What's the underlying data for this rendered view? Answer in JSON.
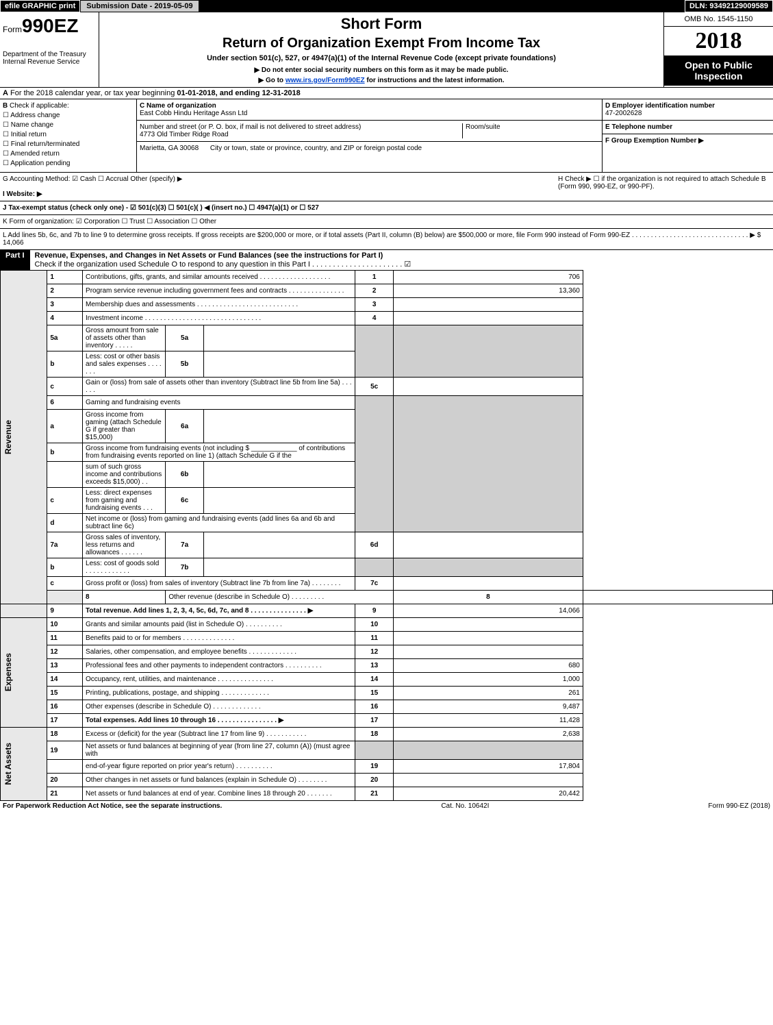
{
  "topbar": {
    "efile": "efile GRAPHIC print",
    "submission": "Submission Date - 2019-05-09",
    "dln": "DLN: 93492129009589"
  },
  "header": {
    "form_prefix": "Form",
    "form_number": "990EZ",
    "dept1": "Department of the Treasury",
    "dept2": "Internal Revenue Service",
    "short_form": "Short Form",
    "return_title": "Return of Organization Exempt From Income Tax",
    "under_section": "Under section 501(c), 527, or 4947(a)(1) of the Internal Revenue Code (except private foundations)",
    "do_not": "▶ Do not enter social security numbers on this form as it may be made public.",
    "goto_pre": "▶ Go to ",
    "goto_link": "www.irs.gov/Form990EZ",
    "goto_post": " for instructions and the latest information.",
    "omb": "OMB No. 1545-1150",
    "year": "2018",
    "open_to": "Open to Public Inspection"
  },
  "row_a": {
    "label": "A",
    "text_pre": "For the 2018 calendar year, or tax year beginning ",
    "begin": "01-01-2018",
    "mid": ", and ending ",
    "end": "12-31-2018"
  },
  "section_b": {
    "label": "B",
    "title": "Check if applicable:",
    "opts": [
      "Address change",
      "Name change",
      "Initial return",
      "Final return/terminated",
      "Amended return",
      "Application pending"
    ]
  },
  "section_c": {
    "name_label": "C Name of organization",
    "name": "East Cobb Hindu Heritage Assn Ltd",
    "street_label": "Number and street (or P. O. box, if mail is not delivered to street address)",
    "street": "4773 Old Timber Ridge Road",
    "room_label": "Room/suite",
    "city_label": "City or town, state or province, country, and ZIP or foreign postal code",
    "city": "Marietta, GA  30068"
  },
  "section_d": {
    "ein_label": "D Employer identification number",
    "ein": "47-2002628",
    "tel_label": "E Telephone number",
    "ge_label": "F Group Exemption Number  ▶"
  },
  "row_gh": {
    "g": "G Accounting Method:  ☑ Cash  ☐ Accrual  Other (specify) ▶",
    "i": "I Website: ▶",
    "h1": "H  Check ▶  ☐  if the organization is not required to attach Schedule B",
    "h2": "(Form 990, 990-EZ, or 990-PF)."
  },
  "row_j": "J Tax-exempt status (check only one) - ☑ 501(c)(3) ☐ 501(c)(  ) ◀ (insert no.) ☐ 4947(a)(1) or ☐ 527",
  "row_k": "K Form of organization:  ☑ Corporation  ☐ Trust  ☐ Association  ☐ Other",
  "row_l": {
    "text": "L Add lines 5b, 6c, and 7b to line 9 to determine gross receipts. If gross receipts are $200,000 or more, or if total assets (Part II, column (B) below) are $500,000 or more, file Form 990 instead of Form 990-EZ  . . . . . . . . . . . . . . . . . . . . . . . . . . . . . . .  ▶ $ 14,066"
  },
  "part1": {
    "num": "Part I",
    "title": "Revenue, Expenses, and Changes in Net Assets or Fund Balances (see the instructions for Part I)",
    "check": "Check if the organization used Schedule O to respond to any question in this Part I . . . . . . . . . . . . . . . . . . . . . .  ☑"
  },
  "sections": {
    "revenue_label": "Revenue",
    "expenses_label": "Expenses",
    "netassets_label": "Net Assets"
  },
  "lines": {
    "1": {
      "d": "Contributions, gifts, grants, and similar amounts received  . . . . . . . . . . . . . . . . . . .",
      "n": "1",
      "a": "706"
    },
    "2": {
      "d": "Program service revenue including government fees and contracts  . . . . . . . . . . . . . . .",
      "n": "2",
      "a": "13,360"
    },
    "3": {
      "d": "Membership dues and assessments  . . . . . . . . . . . . . . . . . . . . . . . . . . .",
      "n": "3",
      "a": ""
    },
    "4": {
      "d": "Investment income  . . . . . . . . . . . . . . . . . . . . . . . . . . . . . . .",
      "n": "4",
      "a": ""
    },
    "5a": {
      "d": "Gross amount from sale of assets other than inventory  . . . . .",
      "sn": "5a"
    },
    "5b": {
      "d": "Less: cost or other basis and sales expenses  . . . . . . .",
      "sn": "5b"
    },
    "5c": {
      "d": "Gain or (loss) from sale of assets other than inventory (Subtract line 5b from line 5a)       .   .   .   .   .   .",
      "n": "5c",
      "a": ""
    },
    "6": {
      "d": "Gaming and fundraising events"
    },
    "6a": {
      "d": "Gross income from gaming (attach Schedule G if greater than $15,000)",
      "sn": "6a"
    },
    "6b_pre": {
      "d": "Gross income from fundraising events (not including $ ____________  of contributions from fundraising events reported on line 1) (attach Schedule G if the"
    },
    "6b": {
      "d": "sum of such gross income and contributions exceeds $15,000)      .   .",
      "sn": "6b"
    },
    "6c": {
      "d": "Less: direct expenses from gaming and fundraising events       .   .   .",
      "sn": "6c"
    },
    "6d": {
      "d": "Net income or (loss) from gaming and fundraising events (add lines 6a and 6b and subtract line 6c)",
      "n": "6d",
      "a": ""
    },
    "7a": {
      "d": "Gross sales of inventory, less returns and allowances         .   .   .   .   .   .",
      "sn": "7a"
    },
    "7b": {
      "d": "Less: cost of goods sold              .   .   .   .   .   .   .   .   .   .   .   .",
      "sn": "7b"
    },
    "7c": {
      "d": "Gross profit or (loss) from sales of inventory (Subtract line 7b from line 7a)       .   .   .   .   .   .   .   .",
      "n": "7c",
      "a": ""
    },
    "8": {
      "d": "Other revenue (describe in Schedule O)        .   .   .   .   .   .   .   .   .",
      "n": "8",
      "a": ""
    },
    "9": {
      "d": "Total revenue. Add lines 1, 2, 3, 4, 5c, 6d, 7c, and 8     .   .   .   .   .   .   .   .   .   .   .   .   .   .   .   ▶",
      "n": "9",
      "a": "14,066",
      "bold": true
    },
    "10": {
      "d": "Grants and similar amounts paid (list in Schedule O)       .   .   .   .   .   .   .   .   .   .",
      "n": "10",
      "a": ""
    },
    "11": {
      "d": "Benefits paid to or for members       .   .   .   .   .   .   .   .   .   .   .   .   .   .",
      "n": "11",
      "a": ""
    },
    "12": {
      "d": "Salaries, other compensation, and employee benefits       .   .   .   .   .   .   .   .   .   .   .   .   .",
      "n": "12",
      "a": ""
    },
    "13": {
      "d": "Professional fees and other payments to independent contractors       .   .   .   .   .   .   .   .   .   .",
      "n": "13",
      "a": "680"
    },
    "14": {
      "d": "Occupancy, rent, utilities, and maintenance       .   .   .   .   .   .   .   .   .   .   .   .   .   .   .",
      "n": "14",
      "a": "1,000"
    },
    "15": {
      "d": "Printing, publications, postage, and shipping       .   .   .   .   .   .   .   .   .   .   .   .   .",
      "n": "15",
      "a": "261"
    },
    "16": {
      "d": "Other expenses (describe in Schedule O)       .   .   .   .   .   .   .   .   .   .   .   .   .",
      "n": "16",
      "a": "9,487"
    },
    "17": {
      "d": "Total expenses. Add lines 10 through 16     .   .   .   .   .   .   .   .   .   .   .   .   .   .   .   .   ▶",
      "n": "17",
      "a": "11,428",
      "bold": true
    },
    "18": {
      "d": "Excess or (deficit) for the year (Subtract line 17 from line 9)       .   .   .   .   .   .   .   .   .   .   .",
      "n": "18",
      "a": "2,638"
    },
    "19": {
      "d": "Net assets or fund balances at beginning of year (from line 27, column (A)) (must agree with"
    },
    "19b": {
      "d": "end-of-year figure reported on prior year's return)       .   .   .   .   .   .   .   .   .   .",
      "n": "19",
      "a": "17,804"
    },
    "20": {
      "d": "Other changes in net assets or fund balances (explain in Schedule O)       .   .   .   .   .   .   .   .",
      "n": "20",
      "a": ""
    },
    "21": {
      "d": "Net assets or fund balances at end of year. Combine lines 18 through 20       .   .   .   .   .   .   .",
      "n": "21",
      "a": "20,442"
    }
  },
  "footer": {
    "left": "For Paperwork Reduction Act Notice, see the separate instructions.",
    "mid": "Cat. No. 10642I",
    "right": "Form 990-EZ (2018)"
  },
  "colors": {
    "black": "#000000",
    "white": "#ffffff",
    "grey_header": "#cccccc",
    "grey_cell": "#cfcfcf",
    "grey_vlabel": "#e8e8e8",
    "link": "#0044cc"
  }
}
